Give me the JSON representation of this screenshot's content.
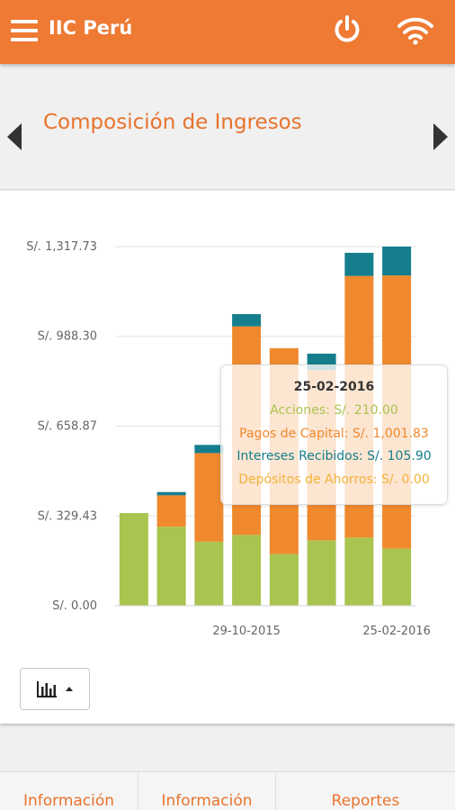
{
  "app": {
    "title": "IIC Perú"
  },
  "header": {
    "title": "Composición de Ingresos"
  },
  "colors": {
    "accent": "#ee7a34",
    "acciones": "#a9c44f",
    "pagos": "#f0892d",
    "intereses": "#157e8c",
    "depositos": "#f3b23a"
  },
  "chart_data": {
    "type": "bar",
    "stacked": true,
    "ylim": [
      0,
      1317.73
    ],
    "yticks": [
      0,
      329.43,
      658.87,
      988.3,
      1317.73
    ],
    "ytick_labels": [
      "S/. 0.00",
      "S/. 329.43",
      "S/. 658.87",
      "S/. 988.30",
      "S/. 1,317.73"
    ],
    "xtick_labels": [
      {
        "index": 3,
        "label": "29-10-2015"
      },
      {
        "index": 7,
        "label": "25-02-2016"
      }
    ],
    "categories": [
      "",
      "",
      "",
      "29-10-2015",
      "",
      "",
      "",
      "25-02-2016"
    ],
    "series": [
      {
        "name": "Acciones",
        "values": [
          340,
          290,
          235,
          260,
          190,
          240,
          250,
          210
        ]
      },
      {
        "name": "Pagos de Capital",
        "values": [
          0,
          115,
          325,
          765,
          755,
          625,
          960,
          1001.83
        ]
      },
      {
        "name": "Intereses Recibidos",
        "values": [
          0,
          12,
          30,
          45,
          0,
          60,
          85,
          105.9
        ]
      },
      {
        "name": "Depósitos de Ahorros",
        "values": [
          0,
          0,
          0,
          0,
          0,
          0,
          0,
          0
        ]
      }
    ],
    "grid": true,
    "legend": "none"
  },
  "tooltip": {
    "date": "25-02-2016",
    "rows": [
      {
        "text": "Acciones: S/. 210.00"
      },
      {
        "text": "Pagos de Capital: S/. 1,001.83"
      },
      {
        "text": "Intereses Recibidos: S/. 105.90"
      },
      {
        "text": "Depósitos de Ahorros: S/. 0.00"
      }
    ]
  },
  "tabs": [
    {
      "label": "Información"
    },
    {
      "label": "Información"
    },
    {
      "label": "Reportes"
    }
  ]
}
